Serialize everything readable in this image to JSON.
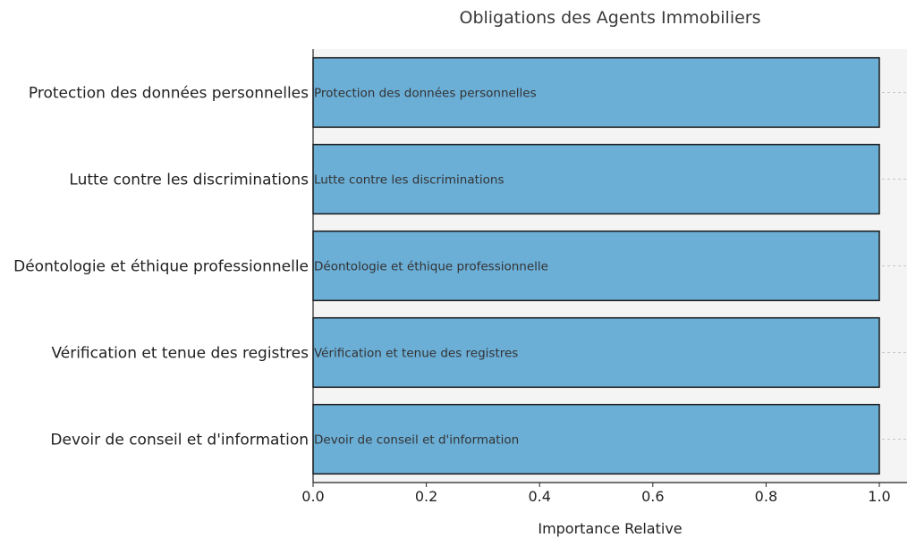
{
  "chart_data": {
    "type": "bar",
    "orientation": "horizontal",
    "title": "Obligations des Agents Immobiliers",
    "xlabel": "Importance Relative",
    "ylabel": "",
    "xlim": [
      0,
      1.05
    ],
    "xticks": [
      "0.0",
      "0.2",
      "0.4",
      "0.6",
      "0.8",
      "1.0"
    ],
    "categories": [
      "Protection des données personnelles",
      "Lutte contre les discriminations",
      "Déontologie et éthique professionnelle",
      "Vérification et tenue des registres",
      "Devoir de conseil et d'information"
    ],
    "values": [
      1,
      1,
      1,
      1,
      1
    ],
    "bar_labels": [
      "Protection des données personnelles",
      "Lutte contre les discriminations",
      "Déontologie et éthique professionnelle",
      "Vérification et tenue des registres",
      "Devoir de conseil et d'information"
    ],
    "bar_color": "#6baed6",
    "edge_color": "#1a1a1a",
    "plot_background": "#f4f4f4",
    "grid": "x-dashed"
  }
}
